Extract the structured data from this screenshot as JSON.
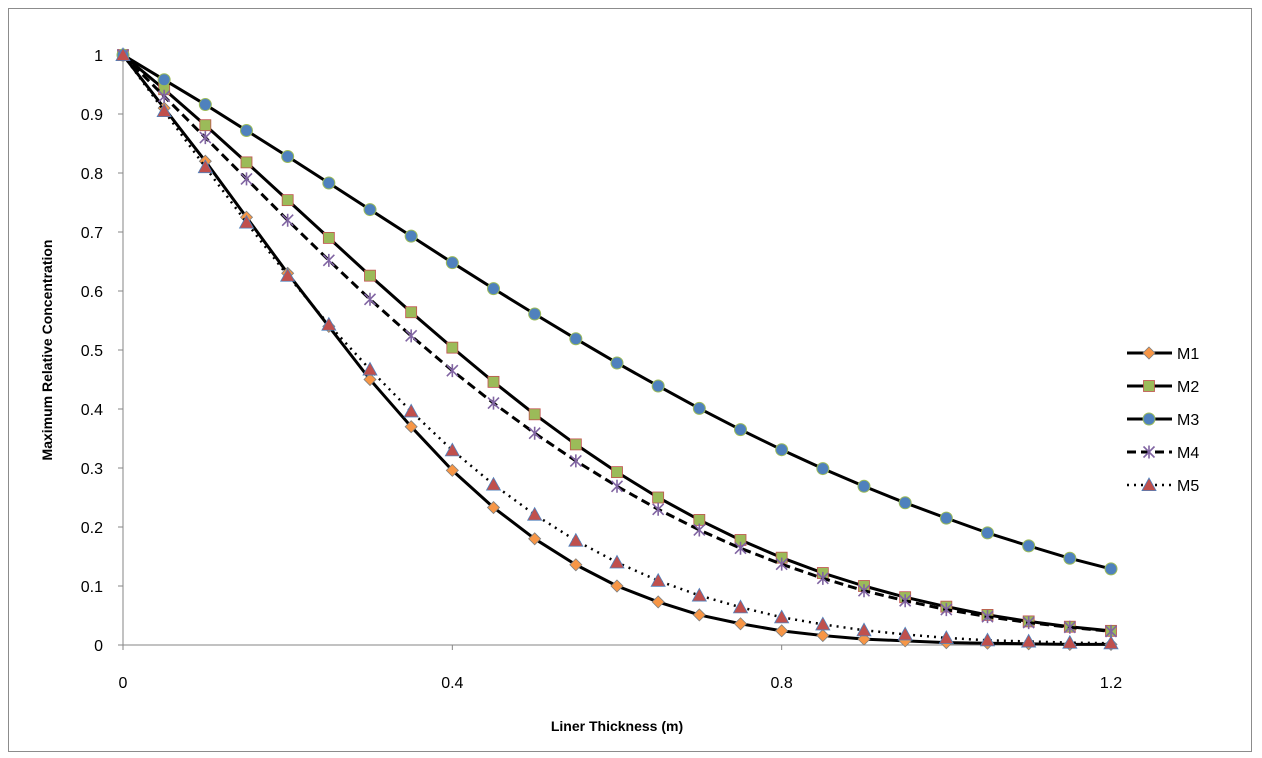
{
  "chart_data": {
    "type": "line",
    "title": "",
    "xlabel": "Liner Thickness (m)",
    "ylabel": "Maximum Relative Concentration",
    "xlim": [
      0,
      1.2
    ],
    "ylim": [
      0,
      1
    ],
    "x_ticks": [
      "0",
      "0.4",
      "0.8",
      "1.2"
    ],
    "x_tick_values": [
      0,
      0.4,
      0.8,
      1.2
    ],
    "y_ticks": [
      "0",
      "0.1",
      "0.2",
      "0.3",
      "0.4",
      "0.5",
      "0.6",
      "0.7",
      "0.8",
      "0.9",
      "1"
    ],
    "y_tick_values": [
      0,
      0.1,
      0.2,
      0.3,
      0.4,
      0.5,
      0.6,
      0.7,
      0.8,
      0.9,
      1
    ],
    "grid": false,
    "legend_position": "right",
    "x": [
      0,
      0.05,
      0.1,
      0.15,
      0.2,
      0.25,
      0.3,
      0.35,
      0.4,
      0.45,
      0.5,
      0.55,
      0.6,
      0.65,
      0.7,
      0.75,
      0.8,
      0.85,
      0.9,
      0.95,
      1.0,
      1.05,
      1.1,
      1.15,
      1.2
    ],
    "series": [
      {
        "name": "M1",
        "marker": "diamond",
        "marker_color": "#f79646",
        "line_style": "solid",
        "values": [
          1,
          0.91,
          0.82,
          0.725,
          0.63,
          0.54,
          0.45,
          0.37,
          0.296,
          0.233,
          0.18,
          0.136,
          0.1,
          0.073,
          0.051,
          0.036,
          0.024,
          0.016,
          0.01,
          0.007,
          0.004,
          0.003,
          0.002,
          0.001,
          0.001
        ]
      },
      {
        "name": "M2",
        "marker": "square",
        "marker_color": "#9bbb59",
        "line_style": "solid",
        "values": [
          1,
          0.942,
          0.881,
          0.818,
          0.754,
          0.69,
          0.626,
          0.564,
          0.504,
          0.446,
          0.391,
          0.34,
          0.293,
          0.25,
          0.212,
          0.178,
          0.148,
          0.122,
          0.1,
          0.081,
          0.065,
          0.051,
          0.04,
          0.031,
          0.024
        ]
      },
      {
        "name": "M3",
        "marker": "circle",
        "marker_color": "#4f81bd",
        "line_style": "solid",
        "values": [
          1,
          0.958,
          0.916,
          0.872,
          0.828,
          0.783,
          0.738,
          0.693,
          0.648,
          0.604,
          0.561,
          0.519,
          0.478,
          0.439,
          0.401,
          0.365,
          0.331,
          0.299,
          0.269,
          0.241,
          0.215,
          0.19,
          0.168,
          0.147,
          0.129
        ]
      },
      {
        "name": "M4",
        "marker": "star",
        "marker_color": "#8064a2",
        "line_style": "dashed",
        "values": [
          1,
          0.93,
          0.86,
          0.79,
          0.72,
          0.652,
          0.586,
          0.524,
          0.465,
          0.41,
          0.359,
          0.312,
          0.269,
          0.23,
          0.195,
          0.164,
          0.137,
          0.113,
          0.092,
          0.075,
          0.06,
          0.048,
          0.038,
          0.03,
          0.023
        ]
      },
      {
        "name": "M5",
        "marker": "triangle",
        "marker_color": "#c0504d",
        "line_style": "dotted",
        "values": [
          1,
          0.905,
          0.81,
          0.716,
          0.626,
          0.543,
          0.467,
          0.396,
          0.33,
          0.272,
          0.221,
          0.177,
          0.14,
          0.109,
          0.084,
          0.064,
          0.047,
          0.035,
          0.025,
          0.018,
          0.012,
          0.008,
          0.006,
          0.004,
          0.003
        ]
      }
    ]
  }
}
